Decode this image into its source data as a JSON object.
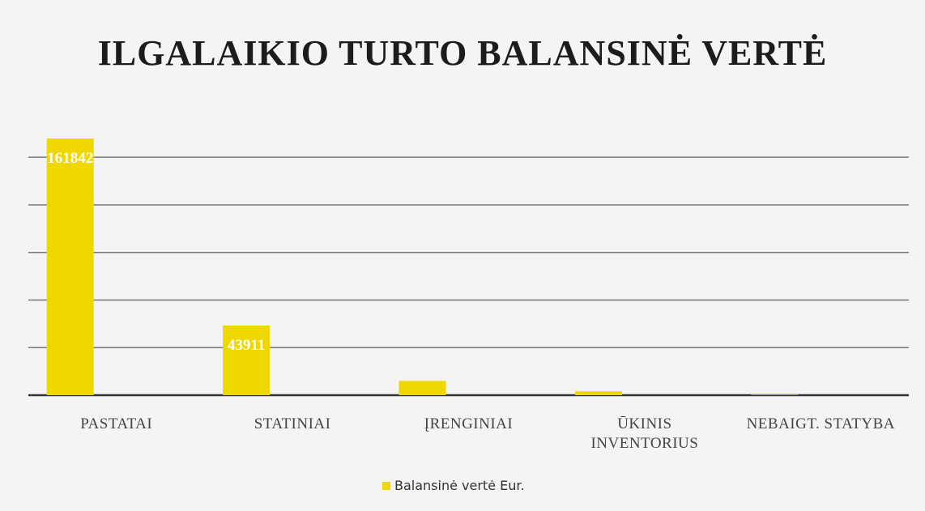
{
  "chart_data": {
    "type": "bar",
    "title": "ILGALAIKIO TURTO BALANSINĖ VERTĖ",
    "categories": [
      "PASTATAI",
      "STATINIAI",
      "ĮRENGINIAI",
      "ŪKINIS INVENTORIUS",
      "NEBAIGT. STATYBA"
    ],
    "series": [
      {
        "name": "Balansinė vertė Eur.",
        "color": "#eed800",
        "values": [
          161842,
          43911,
          9000,
          2500,
          300
        ],
        "value_labels": [
          "161842",
          "43911",
          null,
          null,
          null
        ]
      }
    ],
    "ylim": [
      0,
      170000
    ],
    "yticks": [
      0,
      30000,
      60000,
      90000,
      120000,
      150000
    ],
    "grid": true,
    "legend": "bottom"
  }
}
